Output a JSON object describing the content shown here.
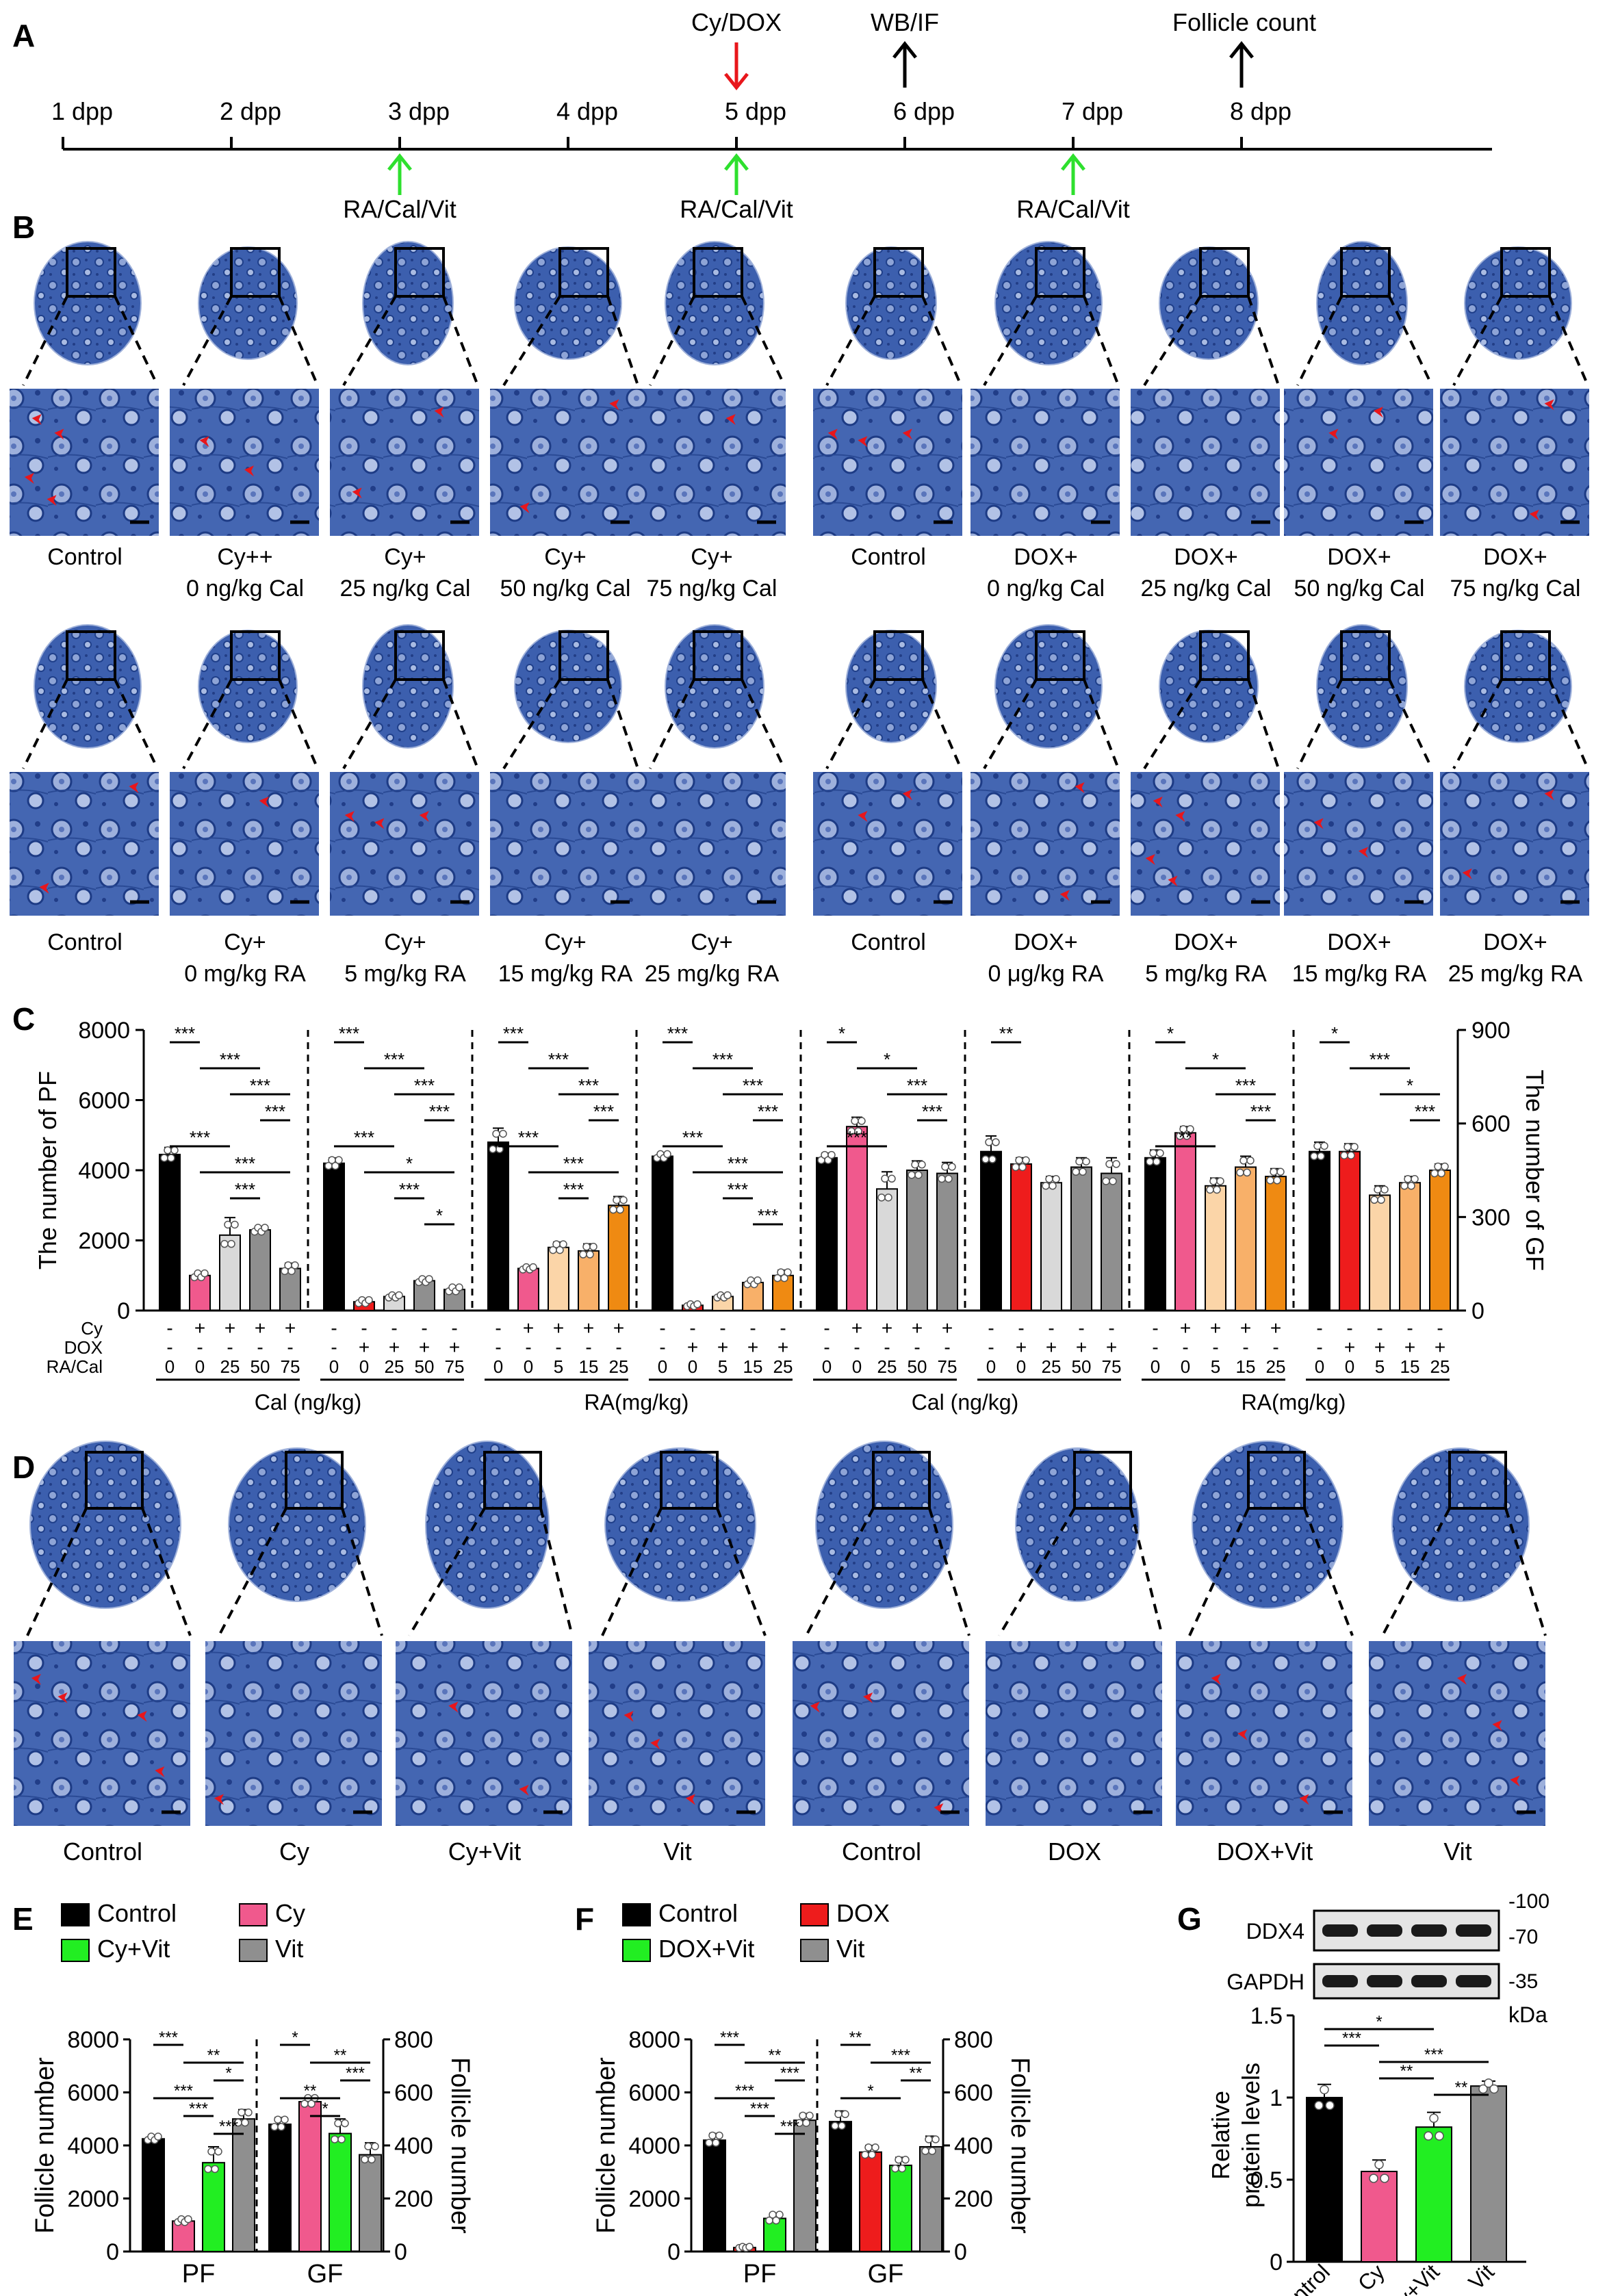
{
  "figure": {
    "panel_letters": [
      "A",
      "B",
      "C",
      "D",
      "E",
      "F",
      "G"
    ],
    "timeline": {
      "days": [
        "1 dpp",
        "2 dpp",
        "3 dpp",
        "4 dpp",
        "5 dpp",
        "6 dpp",
        "7 dpp",
        "8 dpp"
      ],
      "top_events": [
        {
          "label": "Cy/DOX",
          "day_index": 4,
          "direction": "down",
          "color": "#e8161b"
        },
        {
          "label": "WB/IF",
          "day_index": 5,
          "direction": "up",
          "color": "#000000"
        },
        {
          "label": "Follicle count",
          "day_index": 7,
          "direction": "up",
          "color": "#000000"
        }
      ],
      "bottom_events": [
        {
          "label": "RA/Cal/Vit",
          "day_index": 2
        },
        {
          "label": "RA/Cal/Vit",
          "day_index": 4
        },
        {
          "label": "RA/Cal/Vit",
          "day_index": 6
        }
      ]
    },
    "histology_B": {
      "row1_labels": [
        [
          "Control",
          ""
        ],
        [
          "Cy++",
          "0 ng/kg Cal"
        ],
        [
          "Cy+",
          "25 ng/kg Cal"
        ],
        [
          "Cy+",
          "50 ng/kg Cal"
        ],
        [
          "Cy+",
          "75 ng/kg Cal"
        ],
        [
          "Control",
          ""
        ],
        [
          "DOX+",
          "0 ng/kg Cal"
        ],
        [
          "DOX+",
          "25 ng/kg Cal"
        ],
        [
          "DOX+",
          "50 ng/kg Cal"
        ],
        [
          "DOX+",
          "75 ng/kg Cal"
        ]
      ],
      "row2_labels": [
        [
          "Control",
          ""
        ],
        [
          "Cy+",
          "0 mg/kg RA"
        ],
        [
          "Cy+",
          "5 mg/kg RA"
        ],
        [
          "Cy+",
          "15 mg/kg RA"
        ],
        [
          "Cy+",
          "25 mg/kg RA"
        ],
        [
          "Control",
          ""
        ],
        [
          "DOX+",
          "0 μg/kg RA"
        ],
        [
          "DOX+",
          "5 mg/kg RA"
        ],
        [
          "DOX+",
          "15 mg/kg RA"
        ],
        [
          "DOX+",
          "25 mg/kg RA"
        ]
      ]
    },
    "histology_D": {
      "labels": [
        "Control",
        "Cy",
        "Cy+Vit",
        "Vit",
        "Control",
        "DOX",
        "DOX+Vit",
        "Vit"
      ]
    },
    "colors": {
      "black": "#000000",
      "pink": "#f0598d",
      "lightgray": "#d9d9d9",
      "gray": "#8f8f8f",
      "red": "#ee1c1c",
      "green": "#22ee22",
      "peach": "#fbd5a8",
      "lightorange": "#f8b069",
      "orange": "#ef8a12",
      "tissue": "#3c5fae",
      "arrow": "#e8161b"
    }
  },
  "chart_data": [
    {
      "id": "C",
      "type": "bar",
      "ylabel_left": "The number of PF",
      "ylabel_right": "The number of GF",
      "ylim_left": [
        0,
        8000
      ],
      "ylim_right": [
        0,
        900
      ],
      "yticks_left": [
        "0",
        "2000",
        "4000",
        "6000",
        "8000"
      ],
      "yticks_right": [
        "0",
        "300",
        "600",
        "900"
      ],
      "row_labels": [
        "Cy",
        "DOX",
        "RA/Cal"
      ],
      "section_labels": [
        "Cal (ng/kg)",
        "RA(mg/kg)",
        "Cal (ng/kg)",
        "RA(mg/kg)"
      ],
      "groups": [
        {
          "axis": "left",
          "values": [
            4450,
            1000,
            2150,
            2300,
            1200
          ],
          "errors": [
            200,
            100,
            500,
            100,
            150
          ],
          "colors": [
            "#000000",
            "#f0598d",
            "#d9d9d9",
            "#8f8f8f",
            "#8f8f8f"
          ],
          "cy": [
            "-",
            "+",
            "+",
            "+",
            "+"
          ],
          "dox": [
            "-",
            "-",
            "-",
            "-",
            "-"
          ],
          "dose": [
            "0",
            "0",
            "25",
            "50",
            "75"
          ],
          "sig": [
            "***",
            "***",
            "***",
            "***",
            "***",
            "***",
            "***"
          ]
        },
        {
          "axis": "left",
          "values": [
            4200,
            250,
            400,
            850,
            600
          ],
          "errors": [
            150,
            80,
            60,
            80,
            100
          ],
          "colors": [
            "#000000",
            "#ee1c1c",
            "#d9d9d9",
            "#8f8f8f",
            "#8f8f8f"
          ],
          "cy": [
            "-",
            "-",
            "-",
            "-",
            "-"
          ],
          "dox": [
            "-",
            "+",
            "+",
            "+",
            "+"
          ],
          "dose": [
            "0",
            "0",
            "25",
            "50",
            "75"
          ],
          "sig": [
            "***",
            "***",
            "***",
            "***",
            "***",
            "*",
            "***",
            "*"
          ]
        },
        {
          "axis": "left",
          "values": [
            4800,
            1200,
            1800,
            1700,
            3000
          ],
          "errors": [
            400,
            60,
            150,
            200,
            250
          ],
          "colors": [
            "#000000",
            "#f0598d",
            "#fbd5a8",
            "#f8b069",
            "#ef8a12"
          ],
          "cy": [
            "-",
            "+",
            "+",
            "+",
            "+"
          ],
          "dox": [
            "-",
            "-",
            "-",
            "-",
            "-"
          ],
          "dose": [
            "0",
            "0",
            "5",
            "15",
            "25"
          ],
          "sig": [
            "***",
            "***",
            "***",
            "***",
            "***",
            "***",
            "***"
          ]
        },
        {
          "axis": "left",
          "values": [
            4400,
            150,
            400,
            800,
            1000
          ],
          "errors": [
            100,
            50,
            60,
            100,
            150
          ],
          "colors": [
            "#000000",
            "#ee1c1c",
            "#fbd5a8",
            "#f8b069",
            "#ef8a12"
          ],
          "cy": [
            "-",
            "-",
            "-",
            "-",
            "-"
          ],
          "dox": [
            "-",
            "+",
            "+",
            "+",
            "+"
          ],
          "dose": [
            "0",
            "0",
            "5",
            "15",
            "25"
          ],
          "sig": [
            "***",
            "***",
            "***",
            "***",
            "***",
            "***",
            "***",
            "***"
          ]
        },
        {
          "axis": "right",
          "values": [
            490,
            590,
            390,
            450,
            440
          ],
          "errors": [
            15,
            30,
            55,
            30,
            35
          ],
          "colors": [
            "#000000",
            "#f0598d",
            "#d9d9d9",
            "#8f8f8f",
            "#8f8f8f"
          ],
          "cy": [
            "-",
            "+",
            "+",
            "+",
            "+"
          ],
          "dox": [
            "-",
            "-",
            "-",
            "-",
            "-"
          ],
          "dose": [
            "0",
            "0",
            "25",
            "50",
            "75"
          ],
          "sig": [
            "*",
            "*",
            "***",
            "***",
            "***"
          ]
        },
        {
          "axis": "right",
          "values": [
            510,
            470,
            410,
            460,
            440
          ],
          "errors": [
            50,
            20,
            20,
            30,
            50
          ],
          "colors": [
            "#000000",
            "#ee1c1c",
            "#d9d9d9",
            "#8f8f8f",
            "#8f8f8f"
          ],
          "cy": [
            "-",
            "-",
            "-",
            "-",
            "-"
          ],
          "dox": [
            "-",
            "+",
            "+",
            "+",
            "+"
          ],
          "dose": [
            "0",
            "0",
            "25",
            "50",
            "75"
          ],
          "sig": [
            "**"
          ]
        },
        {
          "axis": "right",
          "values": [
            490,
            570,
            400,
            460,
            430
          ],
          "errors": [
            25,
            20,
            25,
            35,
            25
          ],
          "colors": [
            "#000000",
            "#f0598d",
            "#fbd5a8",
            "#f8b069",
            "#ef8a12"
          ],
          "cy": [
            "-",
            "+",
            "+",
            "+",
            "+"
          ],
          "dox": [
            "-",
            "-",
            "-",
            "-",
            "-"
          ],
          "dose": [
            "0",
            "0",
            "5",
            "15",
            "25"
          ],
          "sig": [
            "*",
            "*",
            "***",
            "***",
            "**"
          ]
        },
        {
          "axis": "right",
          "values": [
            510,
            510,
            370,
            410,
            450
          ],
          "errors": [
            30,
            25,
            30,
            20,
            20
          ],
          "colors": [
            "#000000",
            "#ee1c1c",
            "#fbd5a8",
            "#f8b069",
            "#ef8a12"
          ],
          "cy": [
            "-",
            "-",
            "-",
            "-",
            "-"
          ],
          "dox": [
            "-",
            "+",
            "+",
            "+",
            "+"
          ],
          "dose": [
            "0",
            "0",
            "5",
            "15",
            "25"
          ],
          "sig": [
            "*",
            "***",
            "*",
            "***"
          ]
        }
      ]
    },
    {
      "id": "E",
      "type": "bar",
      "legend": [
        {
          "label": "Control",
          "color": "#000000"
        },
        {
          "label": "Cy",
          "color": "#f0598d"
        },
        {
          "label": "Cy+Vit",
          "color": "#22ee22"
        },
        {
          "label": "Vit",
          "color": "#8f8f8f"
        }
      ],
      "ylabel_left": "Follicle number",
      "ylabel_right": "Follicle number",
      "ylim_left": [
        0,
        8000
      ],
      "ylim_right": [
        0,
        800
      ],
      "yticks_left": [
        "0",
        "2000",
        "4000",
        "6000",
        "8000"
      ],
      "yticks_right": [
        "0",
        "200",
        "400",
        "600",
        "800"
      ],
      "categories": [
        "PF",
        "GF"
      ],
      "series_values": {
        "PF": [
          4250,
          1150,
          3350,
          5000
        ],
        "GF": [
          480,
          565,
          445,
          365
        ]
      },
      "series_errors": {
        "PF": [
          120,
          100,
          600,
          350
        ],
        "GF": [
          25,
          20,
          55,
          45
        ]
      },
      "sig_PF": [
        "***",
        "**",
        "*",
        "***",
        "***",
        "***"
      ],
      "sig_GF": [
        "*",
        "**",
        "***",
        "**",
        "*"
      ]
    },
    {
      "id": "F",
      "type": "bar",
      "legend": [
        {
          "label": "Control",
          "color": "#000000"
        },
        {
          "label": "DOX",
          "color": "#ee1c1c"
        },
        {
          "label": "DOX+Vit",
          "color": "#22ee22"
        },
        {
          "label": "Vit",
          "color": "#8f8f8f"
        }
      ],
      "ylabel_left": "Follicle number",
      "ylabel_right": "Follicle number",
      "ylim_left": [
        0,
        8000
      ],
      "ylim_right": [
        0,
        800
      ],
      "yticks_left": [
        "0",
        "2000",
        "4000",
        "6000",
        "8000"
      ],
      "yticks_right": [
        "0",
        "200",
        "400",
        "600",
        "800"
      ],
      "categories": [
        "PF",
        "GF"
      ],
      "series_values": {
        "PF": [
          4200,
          150,
          1250,
          4950
        ],
        "GF": [
          490,
          375,
          325,
          395
        ]
      },
      "series_errors": {
        "PF": [
          250,
          40,
          200,
          250
        ],
        "GF": [
          40,
          25,
          30,
          40
        ]
      },
      "sig_PF": [
        "***",
        "**",
        "***",
        "***",
        "***",
        "***"
      ],
      "sig_GF": [
        "**",
        "***",
        "**",
        "*"
      ]
    },
    {
      "id": "G",
      "type": "bar",
      "blot_labels": [
        "DDX4",
        "GAPDH"
      ],
      "mw_markers": [
        "-100",
        "-70",
        "-35"
      ],
      "unit": "kDa",
      "ylabel": "Relative protein levels",
      "ylim": [
        0,
        1.5
      ],
      "yticks": [
        "0",
        "0.5",
        "1",
        "1.5"
      ],
      "categories": [
        "Control",
        "Cy",
        "Cy+Vit",
        "Vit"
      ],
      "values": [
        1.0,
        0.55,
        0.82,
        1.07
      ],
      "errors": [
        0.08,
        0.07,
        0.09,
        0.03
      ],
      "colors": [
        "#000000",
        "#f0598d",
        "#22ee22",
        "#8f8f8f"
      ],
      "sig": [
        "*",
        "***",
        "***",
        "**",
        "**"
      ]
    }
  ]
}
